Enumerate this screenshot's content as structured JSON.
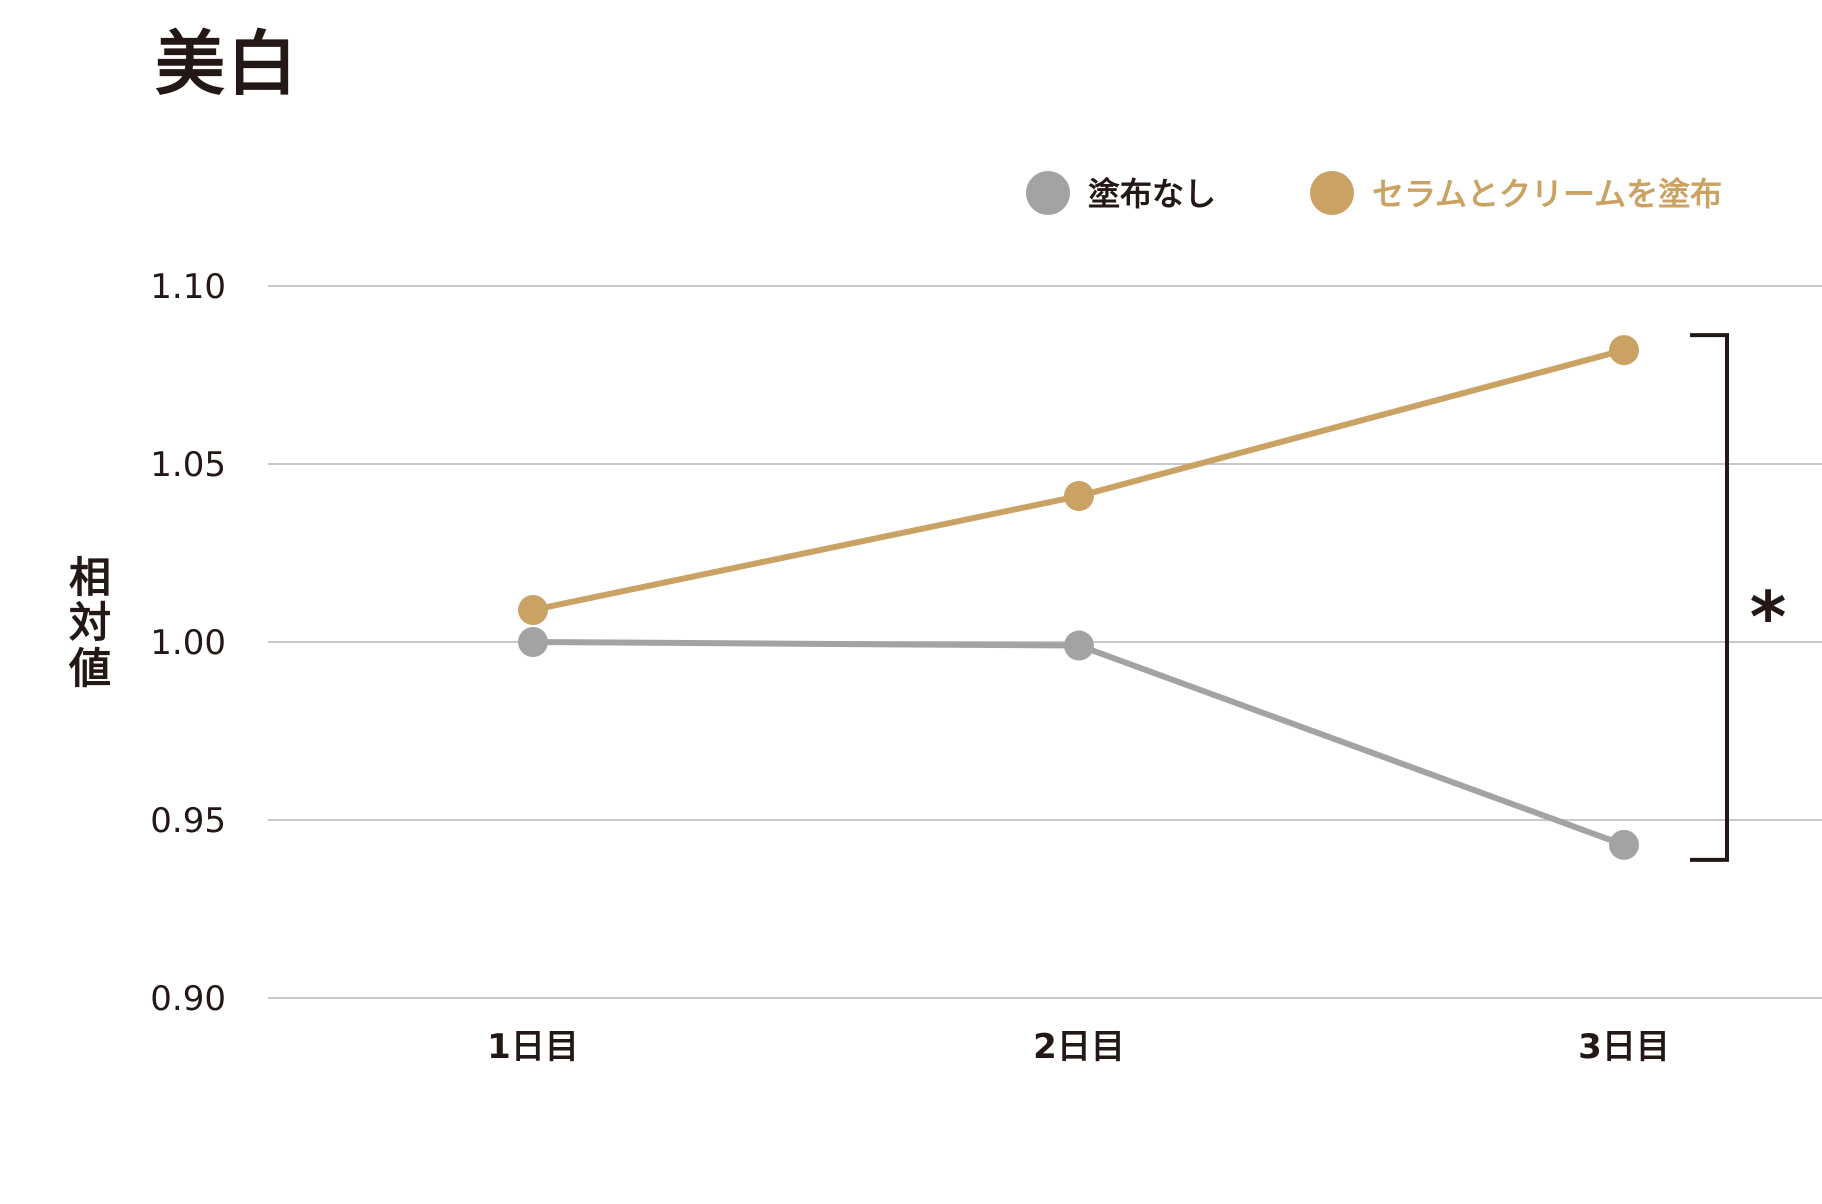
{
  "chart_data": {
    "type": "line",
    "title": "美白",
    "ylabel": "相対値",
    "xlabel": "",
    "categories": [
      "1日目",
      "2日目",
      "3日目"
    ],
    "ylim": [
      0.9,
      1.1
    ],
    "yticks": [
      1.1,
      1.05,
      1.0,
      0.95,
      0.9
    ],
    "ytick_labels": [
      "1.10",
      "1.05",
      "1.00",
      "0.95",
      "0.90"
    ],
    "grid": true,
    "legend_position": "top-right",
    "series": [
      {
        "name": "塗布なし",
        "values": [
          1.0,
          0.999,
          0.943
        ],
        "color": "#a3a3a3"
      },
      {
        "name": "セラムとクリームを塗布",
        "values": [
          1.009,
          1.041,
          1.082
        ],
        "color": "#c9a264"
      }
    ],
    "annotations": [
      {
        "text": "*",
        "type": "significance-bracket",
        "spans_category": "3日目"
      }
    ]
  },
  "colors": {
    "text": "#231815",
    "grid": "#c8c8c8"
  }
}
